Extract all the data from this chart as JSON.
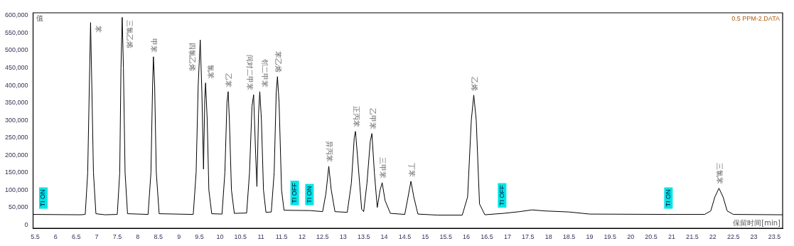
{
  "chart_data": {
    "type": "line",
    "title": "0.5 PPM-2.DATA",
    "xlabel": "保留时间[min]",
    "ylabel": "值",
    "xlim": [
      5.45,
      23.7
    ],
    "xticks": [
      5.5,
      6,
      6.5,
      7,
      7.5,
      8,
      8.5,
      9,
      9.5,
      10,
      10.5,
      11,
      11.5,
      12,
      12.5,
      13,
      13.5,
      14,
      14.5,
      15,
      15.5,
      16,
      16.5,
      17,
      17.5,
      18,
      18.5,
      19,
      19.5,
      20,
      20.5,
      21,
      21.5,
      22,
      22.5,
      23,
      23.5
    ],
    "ylim": [
      -10000,
      608000
    ],
    "yticks": [
      {
        "value": 0,
        "label": "0"
      },
      {
        "value": 50000,
        "label": "50,000"
      },
      {
        "value": 100000,
        "label": "100,000"
      },
      {
        "value": 150000,
        "label": "150,000"
      },
      {
        "value": 200000,
        "label": "200,000"
      },
      {
        "value": 250000,
        "label": "250,000"
      },
      {
        "value": 300000,
        "label": "300,000"
      },
      {
        "value": 350000,
        "label": "350,000"
      },
      {
        "value": 400000,
        "label": "400,000"
      },
      {
        "value": 450000,
        "label": "450,000"
      },
      {
        "value": 500000,
        "label": "500,000"
      },
      {
        "value": 550000,
        "label": "550,000"
      },
      {
        "value": 600000,
        "label": "600,000"
      }
    ],
    "grid": false,
    "legend": false,
    "marker": "none",
    "line_style": "solid",
    "series": [
      {
        "color": "#000000",
        "x": [
          5.45,
          6.6,
          6.72,
          6.78,
          6.82,
          6.85,
          6.88,
          6.92,
          6.98,
          7.2,
          7.5,
          7.56,
          7.59,
          7.62,
          7.65,
          7.69,
          7.75,
          8.25,
          8.32,
          8.36,
          8.38,
          8.41,
          8.45,
          8.52,
          9.35,
          9.42,
          9.47,
          9.52,
          9.56,
          9.6,
          9.63,
          9.65,
          9.69,
          9.73,
          9.8,
          10.05,
          10.12,
          10.17,
          10.2,
          10.23,
          10.28,
          10.35,
          10.65,
          10.72,
          10.78,
          10.82,
          10.87,
          10.9,
          10.94,
          10.97,
          11.01,
          11.06,
          11.12,
          11.25,
          11.32,
          11.37,
          11.4,
          11.44,
          11.5,
          11.56,
          12.2,
          12.5,
          12.58,
          12.65,
          12.71,
          12.8,
          13.1,
          13.2,
          13.27,
          13.3,
          13.36,
          13.45,
          13.5,
          13.58,
          13.66,
          13.7,
          13.76,
          13.83,
          13.9,
          13.95,
          14.02,
          14.15,
          14.5,
          14.58,
          14.65,
          14.72,
          14.82,
          15.3,
          15.9,
          16.03,
          16.12,
          16.18,
          16.24,
          16.32,
          16.45,
          16.9,
          17.3,
          17.6,
          17.9,
          18.5,
          19,
          20.9,
          21.8,
          21.95,
          22.05,
          22.15,
          22.25,
          22.35,
          22.5,
          23.7
        ],
        "values": [
          30000,
          29000,
          30000,
          150000,
          400000,
          580000,
          400000,
          150000,
          32000,
          29000,
          30000,
          150000,
          450000,
          595000,
          450000,
          150000,
          32000,
          30000,
          150000,
          400000,
          482000,
          400000,
          150000,
          32000,
          30000,
          150000,
          400000,
          530000,
          380000,
          160000,
          360000,
          407000,
          300000,
          100000,
          32000,
          31000,
          150000,
          350000,
          382000,
          300000,
          100000,
          33000,
          34000,
          150000,
          340000,
          373000,
          200000,
          110000,
          320000,
          382000,
          300000,
          100000,
          36000,
          37000,
          150000,
          380000,
          425000,
          350000,
          100000,
          42000,
          41000,
          38000,
          90000,
          168000,
          100000,
          38000,
          36000,
          120000,
          250000,
          268000,
          180000,
          45000,
          38000,
          120000,
          240000,
          262000,
          150000,
          50000,
          100000,
          121000,
          70000,
          33000,
          30000,
          80000,
          125000,
          80000,
          31000,
          28000,
          28000,
          80000,
          300000,
          372000,
          300000,
          60000,
          29000,
          33000,
          38000,
          43000,
          40000,
          37000,
          31000,
          30000,
          30000,
          40000,
          80000,
          105000,
          80000,
          40000,
          30000,
          29000
        ]
      }
    ],
    "annotations": [
      {
        "text": "苯",
        "x": 6.85,
        "y": 580000
      },
      {
        "text": "三氯乙烯",
        "x": 7.62,
        "y": 595000
      },
      {
        "text": "甲苯",
        "x": 8.38,
        "y": 482000
      },
      {
        "text": "四氯乙烯",
        "x": 9.52,
        "y": 530000
      },
      {
        "text": "氯苯",
        "x": 9.65,
        "y": 407000
      },
      {
        "text": "乙苯",
        "x": 10.2,
        "y": 382000
      },
      {
        "text": "间对二甲苯",
        "x": 10.82,
        "y": 373000
      },
      {
        "text": "邻二甲苯",
        "x": 10.97,
        "y": 382000
      },
      {
        "text": "苯乙烯",
        "x": 11.4,
        "y": 425000
      },
      {
        "text": "异丙苯",
        "x": 12.65,
        "y": 168000
      },
      {
        "text": "正丙苯",
        "x": 13.3,
        "y": 268000
      },
      {
        "text": "乙甲苯",
        "x": 13.7,
        "y": 262000
      },
      {
        "text": "三甲苯",
        "x": 13.95,
        "y": 121000
      },
      {
        "text": "丁苯",
        "x": 14.65,
        "y": 125000
      },
      {
        "text": "乙烯",
        "x": 16.18,
        "y": 372000
      },
      {
        "text": "三氯苯",
        "x": 22.15,
        "y": 105000
      },
      {
        "text": "TI ON",
        "x": 5.7,
        "y": 30000
      },
      {
        "text": "TI OFF",
        "x": 11.82,
        "y": 40000
      },
      {
        "text": "TI ON",
        "x": 12.18,
        "y": 40000
      },
      {
        "text": "TI OFF",
        "x": 16.87,
        "y": 33000
      },
      {
        "text": "TI ON",
        "x": 20.92,
        "y": 30000
      }
    ]
  }
}
